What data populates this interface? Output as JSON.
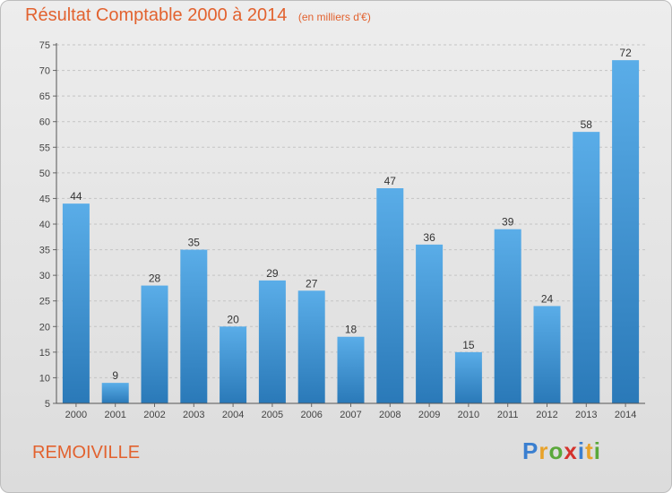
{
  "chart_data": {
    "type": "bar",
    "title": "Résultat Comptable 2000 à 2014",
    "subtitle": "(en milliers d'€)",
    "categories": [
      "2000",
      "2001",
      "2002",
      "2003",
      "2004",
      "2005",
      "2006",
      "2007",
      "2008",
      "2009",
      "2010",
      "2011",
      "2012",
      "2013",
      "2014"
    ],
    "values": [
      44,
      9,
      28,
      35,
      20,
      29,
      27,
      18,
      47,
      36,
      15,
      39,
      24,
      58,
      72
    ],
    "ylim": [
      5,
      75
    ],
    "yticks": [
      5,
      10,
      15,
      20,
      25,
      30,
      35,
      40,
      45,
      50,
      55,
      60,
      65,
      70,
      75
    ],
    "grid": true,
    "xlabel": "",
    "ylabel": ""
  },
  "commune": "REMOIVILLE",
  "logo": {
    "letters": [
      "P",
      "r",
      "o",
      "x",
      "i",
      "t",
      "i"
    ],
    "colors": [
      "#3a7fd0",
      "#e8a22a",
      "#5aa83a",
      "#d4322c",
      "#3a7fd0",
      "#e8a22a",
      "#5aa83a"
    ]
  },
  "colors": {
    "accent": "#e2622f",
    "bar_light": "#5aade8",
    "bar_dark": "#2a79b8",
    "grid": "#c4c4c4"
  }
}
